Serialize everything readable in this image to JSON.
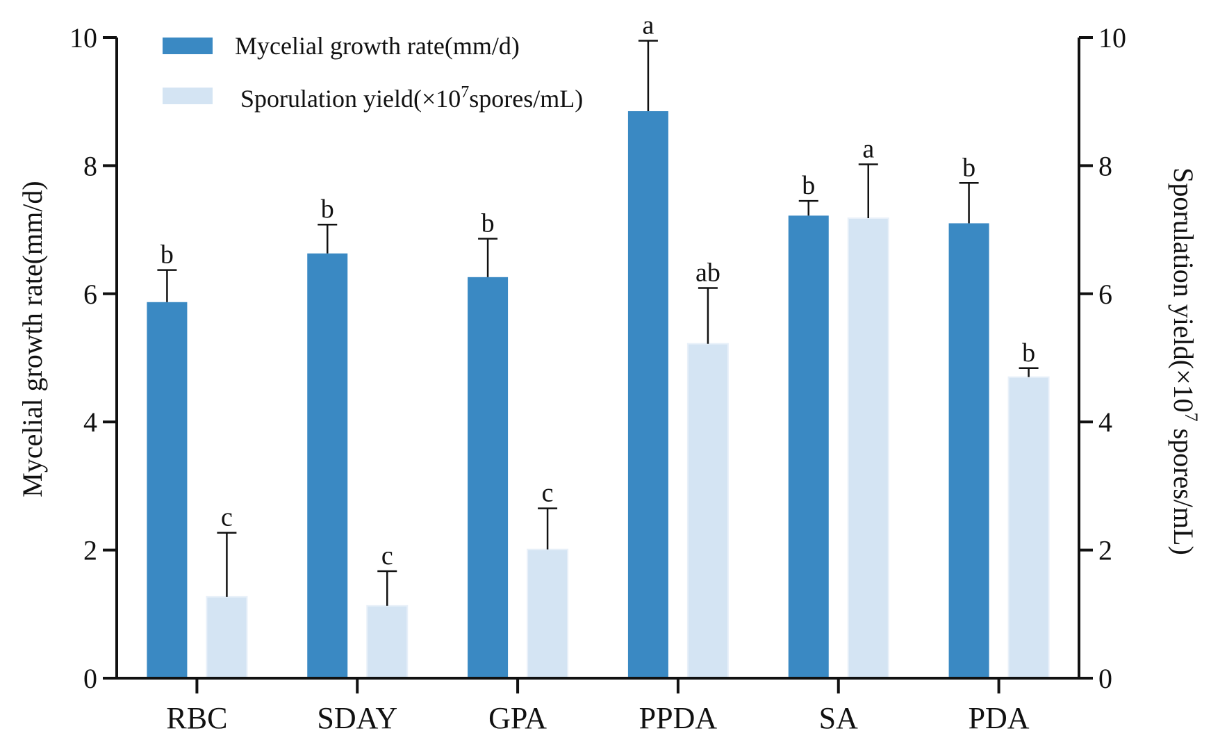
{
  "chart_data": {
    "type": "bar",
    "categories": [
      "RBC",
      "SDAY",
      "GPA",
      "PPDA",
      "SA",
      "PDA"
    ],
    "series": [
      {
        "name": "Mycelial growth rate(mm/d)",
        "axis": "left",
        "color": "#3a89c3",
        "values": [
          5.87,
          6.63,
          6.26,
          8.85,
          7.22,
          7.1
        ],
        "errors": [
          0.5,
          0.45,
          0.6,
          1.1,
          0.23,
          0.63
        ],
        "labels": [
          "b",
          "b",
          "b",
          "a",
          "b",
          "b"
        ]
      },
      {
        "name": "Sporulation yield(×10⁷spores/mL)",
        "axis": "right",
        "color": "#d4e4f3",
        "values": [
          1.27,
          1.13,
          2.01,
          5.22,
          7.18,
          4.7
        ],
        "errors": [
          1.0,
          0.54,
          0.64,
          0.87,
          0.84,
          0.14
        ],
        "labels": [
          "c",
          "c",
          "c",
          "ab",
          "a",
          "b"
        ]
      }
    ],
    "ylabel_left": "Mycelial growth rate(mm/d)",
    "ylabel_right_prefix": "Sporulation yield(×10",
    "ylabel_right_sup": "7",
    "ylabel_right_suffix": " spores/mL)",
    "ylim_left": [
      0,
      10
    ],
    "ylim_right": [
      0,
      10
    ],
    "yticks_left": [
      "0",
      "2",
      "4",
      "6",
      "8",
      "10"
    ],
    "yticks_right": [
      "0",
      "2",
      "4",
      "6",
      "8",
      "10"
    ],
    "legend": {
      "position": "top-left",
      "entries": [
        {
          "text": "Mycelial growth rate(mm/d)",
          "color": "#3a89c3"
        },
        {
          "prefix": "Sporulation yield(×10",
          "sup": "7",
          "suffix": "spores/mL)",
          "color": "#d4e4f3"
        }
      ]
    },
    "grid": false
  }
}
